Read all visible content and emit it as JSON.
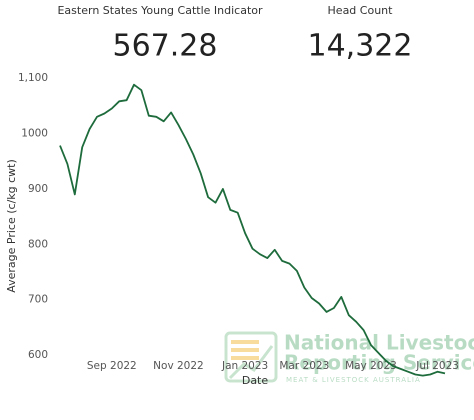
{
  "kpis": [
    {
      "label": "Eastern States Young Cattle Indicator",
      "value": "567.28"
    },
    {
      "label": "Head Count",
      "value": "14,322"
    }
  ],
  "watermark": {
    "title_line1": "National Livestock",
    "title_line2": "Reporting Service",
    "subtitle": "MEAT & LIVESTOCK AUSTRALIA"
  },
  "chart_data": {
    "type": "line",
    "x_label": "Date",
    "y_label": "Average Price (c/kg cwt)",
    "categories": [
      null,
      null,
      null,
      null,
      null,
      null,
      null,
      "Sep 2022",
      null,
      null,
      null,
      null,
      null,
      null,
      null,
      null,
      "Nov 2022",
      null,
      null,
      null,
      null,
      null,
      null,
      null,
      null,
      "Jan 2023",
      null,
      null,
      null,
      null,
      null,
      null,
      null,
      "Mar 2023",
      null,
      null,
      null,
      null,
      null,
      null,
      null,
      null,
      "May 2023",
      null,
      null,
      null,
      null,
      null,
      null,
      null,
      null,
      "Jul 2023",
      null
    ],
    "series": [
      {
        "color": "#1e6b3c",
        "values": [
          978,
          945,
          890,
          975,
          1008,
          1030,
          1036,
          1045,
          1058,
          1060,
          1088,
          1078,
          1032,
          1030,
          1022,
          1038,
          1015,
          990,
          962,
          928,
          885,
          875,
          900,
          862,
          857,
          820,
          792,
          782,
          775,
          790,
          770,
          765,
          752,
          722,
          703,
          693,
          678,
          685,
          705,
          672,
          660,
          645,
          618,
          604,
          590,
          580,
          575,
          570,
          565,
          563,
          565,
          570,
          567
        ]
      }
    ],
    "ylim": [
      555,
      1110
    ],
    "yticks": [
      600,
      700,
      800,
      900,
      1000,
      {
        "value": 1100,
        "label": "1,100"
      }
    ],
    "grid": false
  }
}
